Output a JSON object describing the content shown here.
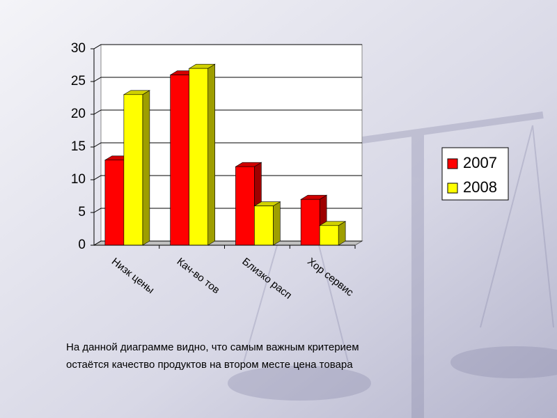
{
  "chart_data": {
    "type": "bar",
    "categories": [
      "Низк цены",
      "Кач-во тов",
      "Близко расп",
      "Хор сервис"
    ],
    "series": [
      {
        "name": "2007",
        "color": "#ff0000",
        "values": [
          13,
          26,
          12,
          7
        ]
      },
      {
        "name": "2008",
        "color": "#ffff00",
        "values": [
          23,
          27,
          6,
          3
        ]
      }
    ],
    "ylim": [
      0,
      30
    ],
    "yticks": [
      0,
      5,
      10,
      15,
      20,
      25,
      30
    ],
    "grid": true,
    "legend": "right"
  },
  "text": {
    "lines": [
      "На данной диаграмме видно, что самым важным критерием",
      "остаётся качество продуктов на втором месте  цена товара"
    ]
  }
}
